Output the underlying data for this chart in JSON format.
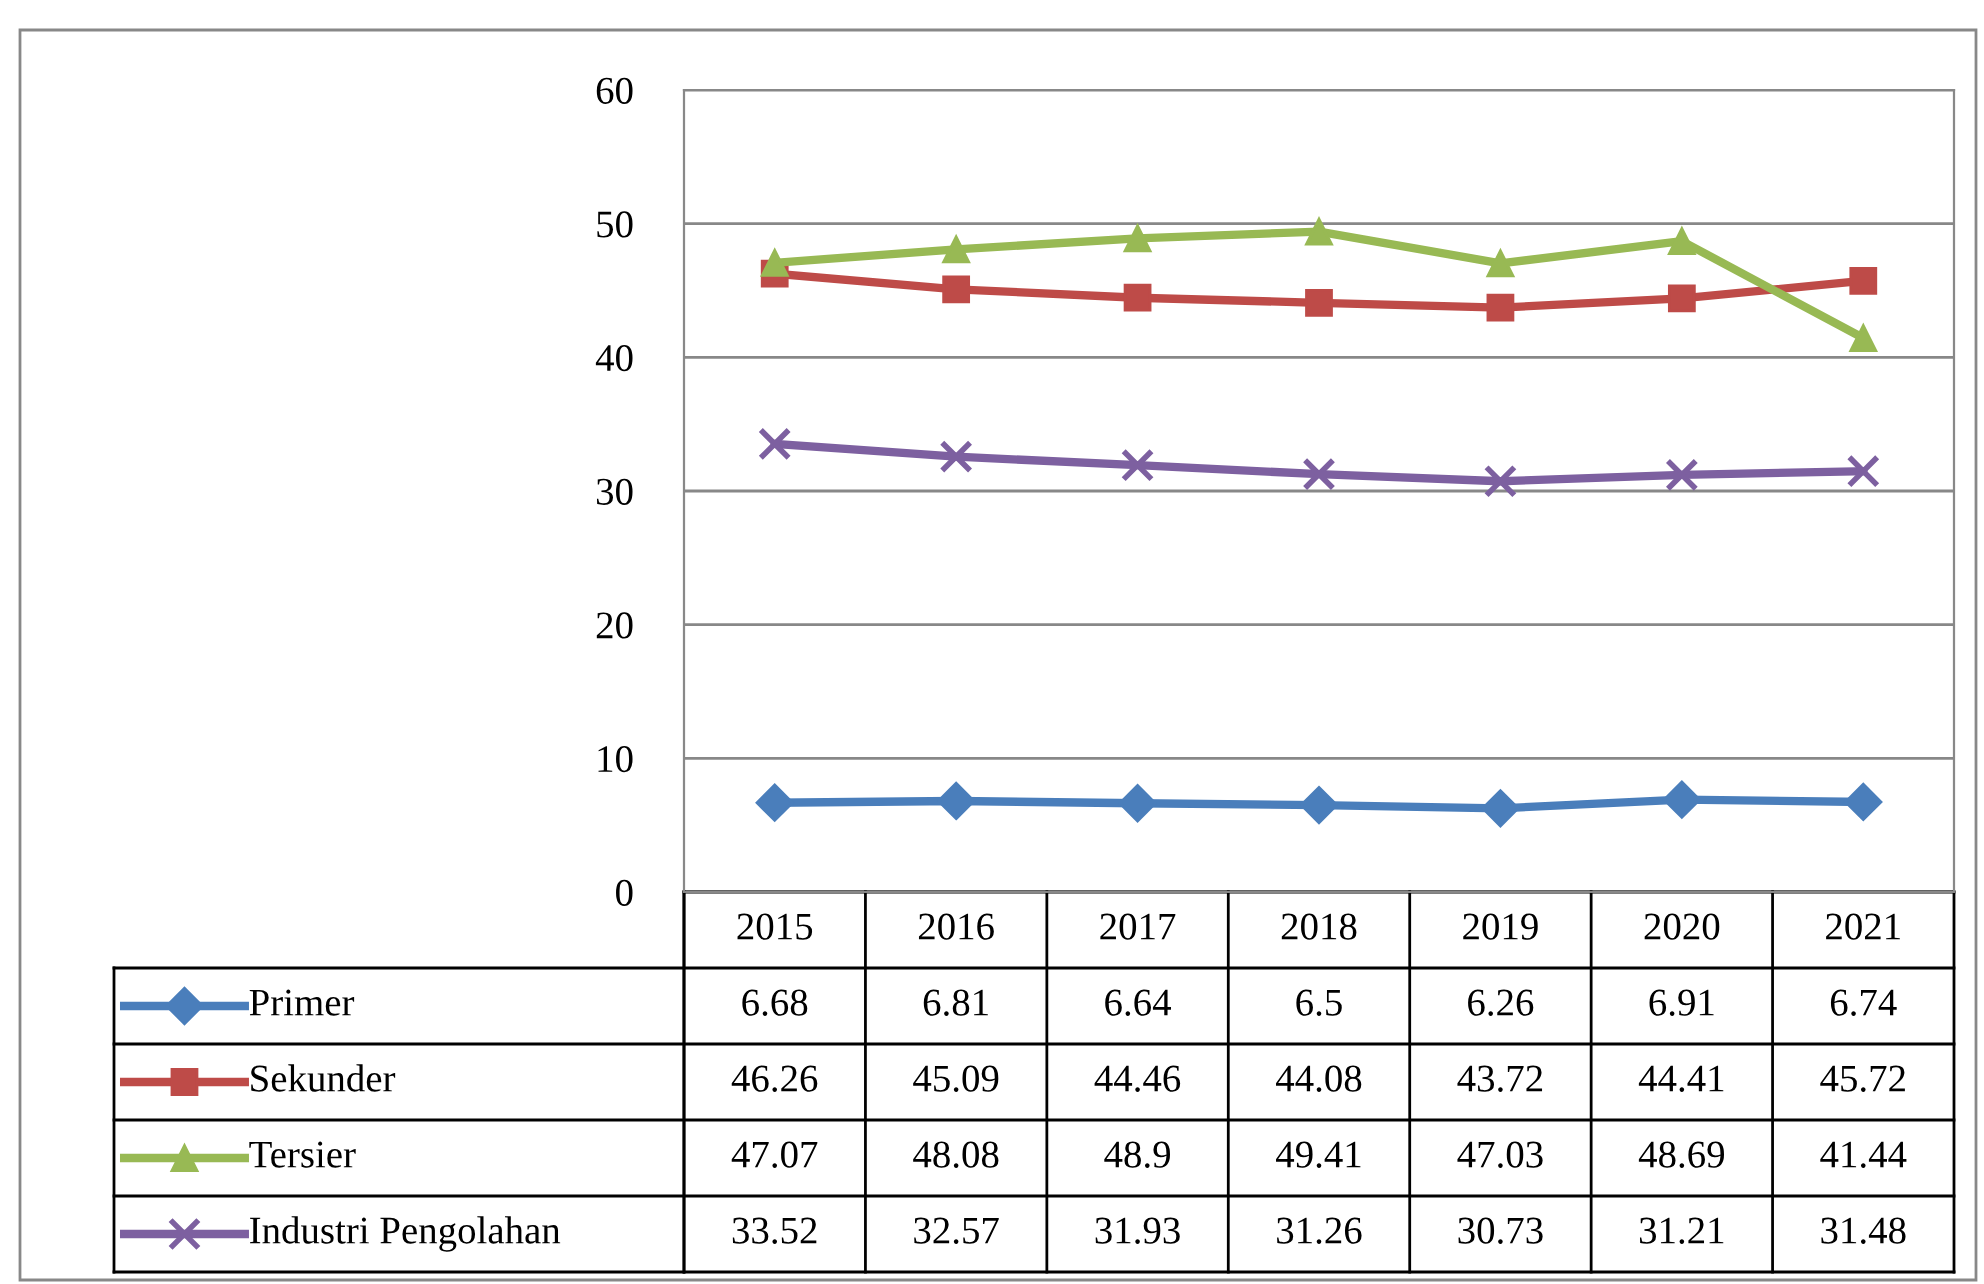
{
  "chart_data": {
    "type": "line",
    "categories": [
      "2015",
      "2016",
      "2017",
      "2018",
      "2019",
      "2020",
      "2021"
    ],
    "series": [
      {
        "name": "Primer",
        "color": "#4a7ebb",
        "marker": "diamond",
        "values": [
          6.68,
          6.81,
          6.64,
          6.5,
          6.26,
          6.91,
          6.74
        ]
      },
      {
        "name": "Sekunder",
        "color": "#be4b48",
        "marker": "square",
        "values": [
          46.26,
          45.09,
          44.46,
          44.08,
          43.72,
          44.41,
          45.72
        ]
      },
      {
        "name": "Tersier",
        "color": "#98b954",
        "marker": "triangle",
        "values": [
          47.07,
          48.08,
          48.9,
          49.41,
          47.03,
          48.69,
          41.44
        ]
      },
      {
        "name": "Industri Pengolahan",
        "color": "#7d60a0",
        "marker": "cross",
        "values": [
          33.52,
          32.57,
          31.93,
          31.26,
          30.73,
          31.21,
          31.48
        ]
      }
    ],
    "ylim": [
      0,
      60
    ],
    "yticks": [
      0,
      10,
      20,
      30,
      40,
      50,
      60
    ],
    "grid": "y",
    "legend": "bottom",
    "data_labels": true,
    "line_style": "solid"
  }
}
